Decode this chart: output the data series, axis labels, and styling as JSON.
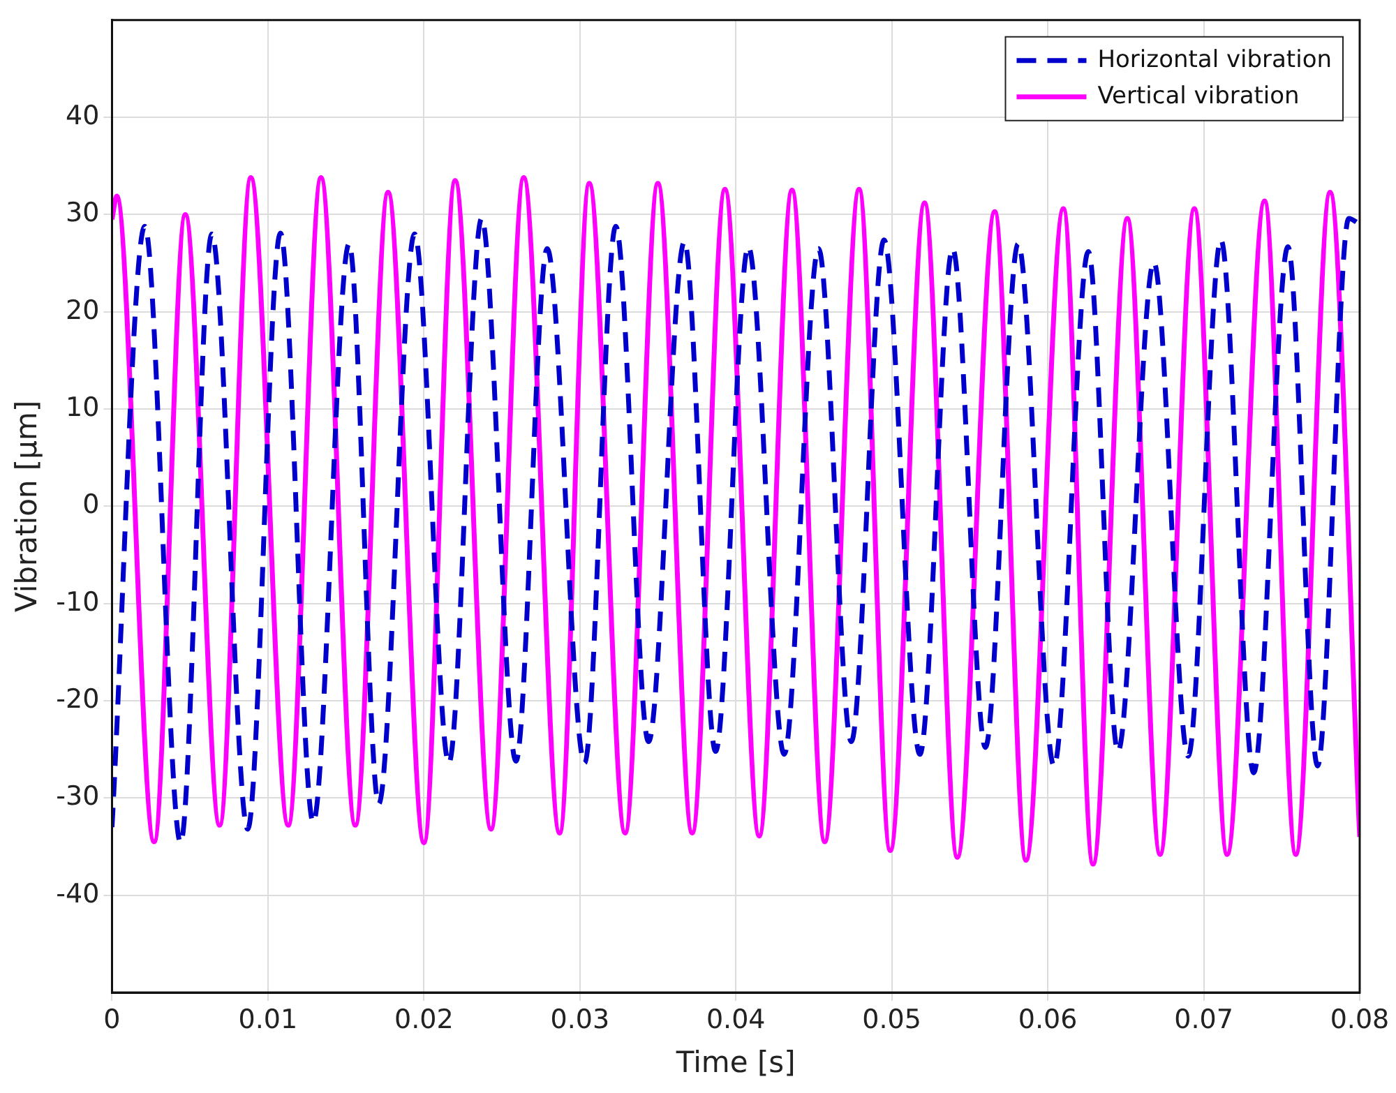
{
  "chart_data": {
    "type": "line",
    "xlabel": "Time [s]",
    "ylabel": "Vibration [µm]",
    "xlim": [
      0,
      0.08
    ],
    "xticks": [
      0,
      0.01,
      0.02,
      0.03,
      0.04,
      0.05,
      0.06,
      0.07,
      0.08
    ],
    "ylim": [
      -50,
      50
    ],
    "yticks": [
      -40,
      -30,
      -20,
      -10,
      0,
      10,
      20,
      30,
      40
    ],
    "grid": true,
    "legend": "top right",
    "marker": "none",
    "series": [
      {
        "name": "Horizontal vibration",
        "color": "#0000cc",
        "line_style": "dashed",
        "x": [
          0,
          0.0021,
          0.0044,
          0.0064,
          0.0087,
          0.0108,
          0.0129,
          0.0152,
          0.0171,
          0.0194,
          0.0216,
          0.0237,
          0.0259,
          0.0279,
          0.0303,
          0.0323,
          0.0344,
          0.0367,
          0.0387,
          0.0408,
          0.0431,
          0.0453,
          0.0474,
          0.0495,
          0.0518,
          0.0539,
          0.056,
          0.0581,
          0.0604,
          0.0626,
          0.0645,
          0.0668,
          0.069,
          0.0711,
          0.0732,
          0.0754,
          0.0773,
          0.0793,
          0.08
        ],
        "values": [
          -33,
          28.8,
          -34.6,
          28,
          -33.2,
          28.1,
          -32.5,
          27,
          -30.6,
          28,
          -26.4,
          29.6,
          -26.2,
          26.5,
          -26.4,
          28.8,
          -24.2,
          27.2,
          -25.2,
          26.7,
          -25.5,
          26.5,
          -24.2,
          27.4,
          -25.5,
          26.5,
          -24.8,
          27,
          -26.7,
          26.2,
          -25.2,
          25.1,
          -25.7,
          27.4,
          -27.4,
          26.7,
          -26.7,
          29.6,
          29
        ]
      },
      {
        "name": "Vertical vibration",
        "color": "#ff00ff",
        "line_style": "solid",
        "x": [
          0,
          0.0003,
          0.0027,
          0.0047,
          0.0069,
          0.0089,
          0.0113,
          0.0134,
          0.0156,
          0.0177,
          0.02,
          0.022,
          0.0243,
          0.0264,
          0.0287,
          0.0306,
          0.0329,
          0.035,
          0.0372,
          0.0393,
          0.0415,
          0.0436,
          0.0457,
          0.0479,
          0.0499,
          0.0521,
          0.0542,
          0.0566,
          0.0586,
          0.061,
          0.0629,
          0.0651,
          0.0672,
          0.0694,
          0.0715,
          0.0739,
          0.0759,
          0.0781,
          0.08
        ],
        "values": [
          29.5,
          31.9,
          -34.5,
          30,
          -32.8,
          33.8,
          -32.8,
          33.8,
          -32.8,
          32.3,
          -34.6,
          33.5,
          -33.2,
          33.8,
          -33.6,
          33.2,
          -33.6,
          33.2,
          -33.6,
          32.6,
          -33.9,
          32.5,
          -34.5,
          32.6,
          -35.4,
          31.2,
          -36.1,
          30.3,
          -36.4,
          30.6,
          -36.8,
          29.6,
          -35.8,
          30.6,
          -35.8,
          31.4,
          -35.8,
          32.3,
          -34
        ]
      }
    ]
  }
}
